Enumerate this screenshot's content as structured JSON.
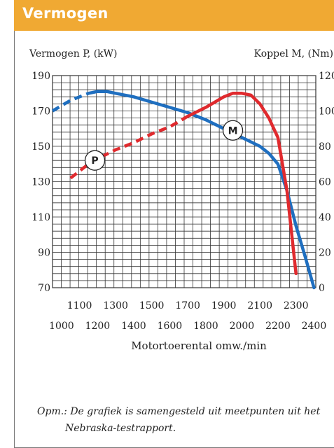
{
  "header": {
    "title": "Vermogen"
  },
  "note": {
    "line1": "Opm.: De grafiek is samengesteld uit meetpunten uit het",
    "line2": "Nebraska-testrapport."
  },
  "colors": {
    "header_bg": "#f0a933",
    "power": "#1f6fc0",
    "torque": "#e02a2e",
    "grid": "#333333"
  },
  "chart_data": {
    "type": "line",
    "left_axis_label": "Vermogen P, (kW)",
    "right_axis_label": "Koppel M, (Nm)",
    "xlabel": "Motortoerental omw./min",
    "xlim": [
      950,
      2410
    ],
    "ylim_left": [
      70,
      190
    ],
    "ylim_right": [
      0,
      120
    ],
    "left_ticks": [
      70,
      90,
      110,
      130,
      150,
      170,
      190
    ],
    "right_ticks": [
      0,
      20,
      40,
      60,
      80,
      100,
      120
    ],
    "right_tick_labels": [
      "0",
      "20",
      "40",
      "60",
      "80",
      "100",
      "120"
    ],
    "x_ticks_row1": [
      1100,
      1300,
      1500,
      1700,
      1900,
      2100,
      2300
    ],
    "x_ticks_row2": [
      1000,
      1200,
      1400,
      1600,
      1800,
      2000,
      2200,
      2400
    ],
    "grid": true,
    "series": [
      {
        "name": "M",
        "color_key": "power",
        "dashed_until": 1190,
        "points": [
          [
            950,
            170
          ],
          [
            1000,
            173
          ],
          [
            1050,
            176
          ],
          [
            1100,
            178
          ],
          [
            1150,
            180
          ],
          [
            1200,
            181
          ],
          [
            1250,
            181
          ],
          [
            1300,
            180
          ],
          [
            1400,
            178
          ],
          [
            1500,
            175
          ],
          [
            1600,
            172
          ],
          [
            1700,
            169
          ],
          [
            1800,
            165
          ],
          [
            1900,
            160
          ],
          [
            2000,
            155
          ],
          [
            2100,
            150
          ],
          [
            2150,
            146
          ],
          [
            2200,
            140
          ],
          [
            2250,
            125
          ],
          [
            2300,
            105
          ],
          [
            2350,
            88
          ],
          [
            2400,
            70
          ]
        ]
      },
      {
        "name": "P",
        "color_key": "torque",
        "dashed_until": 1700,
        "points": [
          [
            1050,
            132
          ],
          [
            1100,
            136
          ],
          [
            1150,
            140
          ],
          [
            1200,
            143
          ],
          [
            1300,
            148
          ],
          [
            1400,
            152
          ],
          [
            1500,
            157
          ],
          [
            1600,
            161
          ],
          [
            1700,
            167
          ],
          [
            1800,
            172
          ],
          [
            1900,
            178
          ],
          [
            1950,
            180
          ],
          [
            2000,
            180
          ],
          [
            2050,
            179
          ],
          [
            2100,
            174
          ],
          [
            2150,
            166
          ],
          [
            2200,
            155
          ],
          [
            2250,
            125
          ],
          [
            2300,
            78
          ]
        ]
      }
    ],
    "markers": [
      {
        "text": "P",
        "x": 1185,
        "y": 142
      },
      {
        "text": "M",
        "x": 1950,
        "y": 159
      }
    ]
  }
}
